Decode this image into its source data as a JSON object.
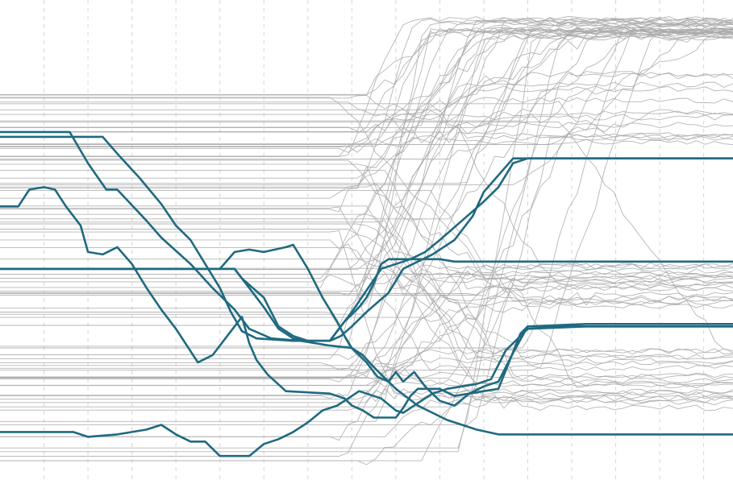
{
  "chart_data": {
    "type": "line",
    "title": "",
    "xlabel": "",
    "ylabel": "",
    "xlim": [
      0,
      100
    ],
    "ylim": [
      0,
      100
    ],
    "grid": {
      "vertical": true,
      "horizontal": false,
      "style": "dashed"
    },
    "grid_x": [
      6,
      12,
      18,
      24,
      30,
      36,
      42,
      48,
      54,
      60,
      66,
      72,
      78,
      84,
      90,
      96
    ],
    "colors": {
      "highlight": "#1f6a80",
      "background": "#a9a9a9",
      "grid": "#d6d6d6"
    },
    "highlighted_series": [
      {
        "values": [
          [
            0,
            72.5
          ],
          [
            9.5,
            72.5
          ],
          [
            12,
            66
          ],
          [
            14.5,
            60.5
          ],
          [
            16,
            60.5
          ],
          [
            20,
            54
          ],
          [
            22,
            50.5
          ],
          [
            26,
            45
          ],
          [
            29,
            40
          ],
          [
            32,
            35.5
          ],
          [
            34,
            31.5
          ],
          [
            37,
            29.5
          ],
          [
            41,
            29
          ],
          [
            45,
            28
          ],
          [
            48,
            27.5
          ],
          [
            49.5,
            26
          ],
          [
            51,
            23.5
          ],
          [
            54,
            19
          ],
          [
            57,
            15.5
          ],
          [
            61,
            12.5
          ],
          [
            65,
            10.5
          ],
          [
            68,
            9.5
          ],
          [
            100,
            9.5
          ]
        ]
      },
      {
        "values": [
          [
            0,
            71.5
          ],
          [
            14,
            71.5
          ],
          [
            16,
            68
          ],
          [
            19,
            63
          ],
          [
            22,
            57.5
          ],
          [
            24,
            53
          ],
          [
            26,
            50
          ],
          [
            28,
            45
          ],
          [
            30,
            40
          ],
          [
            31.5,
            35
          ],
          [
            33,
            31
          ],
          [
            35,
            29.5
          ],
          [
            40,
            29
          ],
          [
            45,
            29
          ],
          [
            46.5,
            30
          ],
          [
            48,
            32
          ],
          [
            50,
            35
          ],
          [
            53,
            39
          ],
          [
            55,
            44
          ],
          [
            59,
            47
          ],
          [
            62,
            50
          ],
          [
            64.5,
            55
          ],
          [
            66,
            60
          ],
          [
            70,
            67
          ],
          [
            100,
            67
          ]
        ]
      },
      {
        "values": [
          [
            0,
            57
          ],
          [
            2.5,
            57
          ],
          [
            4,
            60.5
          ],
          [
            6,
            61
          ],
          [
            7.5,
            60.5
          ],
          [
            9,
            57
          ],
          [
            11,
            53
          ],
          [
            12,
            47.5
          ],
          [
            14,
            47
          ],
          [
            16,
            48.5
          ],
          [
            18,
            45
          ],
          [
            20,
            40
          ],
          [
            22,
            35.5
          ],
          [
            24,
            31.5
          ],
          [
            27,
            24.5
          ],
          [
            29,
            26
          ],
          [
            31,
            30
          ],
          [
            33,
            34
          ],
          [
            34,
            28.5
          ],
          [
            35,
            25
          ],
          [
            36.5,
            22
          ],
          [
            39,
            18.5
          ],
          [
            45,
            18
          ],
          [
            47,
            17
          ],
          [
            48,
            15.5
          ],
          [
            49.5,
            14.5
          ],
          [
            51,
            13
          ],
          [
            54,
            13
          ],
          [
            55,
            15
          ],
          [
            56,
            17.5
          ],
          [
            57,
            19
          ],
          [
            60,
            19
          ],
          [
            62,
            17.5
          ],
          [
            64,
            18
          ],
          [
            66,
            18.5
          ],
          [
            68,
            19
          ],
          [
            71,
            30.5
          ],
          [
            72,
            32
          ],
          [
            100,
            32
          ]
        ]
      },
      {
        "values": [
          [
            0,
            44
          ],
          [
            30,
            44
          ],
          [
            32,
            47.5
          ],
          [
            34,
            48
          ],
          [
            36,
            47.5
          ],
          [
            39,
            48.5
          ],
          [
            40,
            49
          ],
          [
            42,
            44
          ],
          [
            44,
            38
          ],
          [
            46,
            33
          ],
          [
            47,
            30
          ],
          [
            48,
            27.5
          ],
          [
            50,
            24.5
          ],
          [
            51.5,
            21.5
          ],
          [
            53,
            20.5
          ],
          [
            54,
            22.5
          ],
          [
            55,
            20.5
          ],
          [
            56.5,
            22.5
          ],
          [
            58,
            19.5
          ],
          [
            60,
            16.5
          ],
          [
            62,
            15.5
          ],
          [
            64,
            18
          ],
          [
            66,
            19.5
          ],
          [
            68,
            20.5
          ],
          [
            70,
            26.5
          ],
          [
            72,
            32
          ],
          [
            80,
            32.5
          ],
          [
            100,
            32.5
          ]
        ]
      },
      {
        "values": [
          [
            0,
            10
          ],
          [
            10,
            10
          ],
          [
            12,
            9
          ],
          [
            16,
            9.5
          ],
          [
            20,
            10.5
          ],
          [
            22,
            11.5
          ],
          [
            24,
            9.5
          ],
          [
            26,
            8
          ],
          [
            28,
            8
          ],
          [
            30,
            5
          ],
          [
            34,
            5
          ],
          [
            36,
            7.5
          ],
          [
            38,
            8.5
          ],
          [
            40,
            10
          ],
          [
            42,
            12
          ],
          [
            44,
            14.5
          ],
          [
            46,
            15.5
          ],
          [
            48,
            17.5
          ],
          [
            49,
            18.5
          ],
          [
            50,
            18
          ],
          [
            52,
            17
          ],
          [
            54,
            14.5
          ],
          [
            55,
            14
          ],
          [
            57,
            16
          ],
          [
            59,
            18
          ],
          [
            61,
            19
          ],
          [
            63,
            19.5
          ],
          [
            65,
            20
          ],
          [
            67,
            21
          ],
          [
            69,
            27
          ],
          [
            72,
            31.5
          ],
          [
            80,
            32
          ],
          [
            100,
            32
          ]
        ]
      },
      {
        "values": [
          [
            0,
            44
          ],
          [
            32,
            44
          ],
          [
            34,
            40
          ],
          [
            36,
            36
          ],
          [
            38,
            31.5
          ],
          [
            40,
            29.5
          ],
          [
            42,
            29
          ],
          [
            44,
            29
          ],
          [
            45,
            29
          ],
          [
            46,
            31
          ],
          [
            48,
            35
          ],
          [
            50,
            39.5
          ],
          [
            52,
            44
          ],
          [
            54,
            45
          ],
          [
            56,
            46
          ],
          [
            58,
            47.5
          ],
          [
            60,
            50
          ],
          [
            63,
            54
          ],
          [
            66,
            58
          ],
          [
            68,
            61
          ],
          [
            70,
            66
          ],
          [
            72,
            67
          ],
          [
            100,
            67
          ]
        ]
      },
      {
        "values": [
          [
            0,
            44
          ],
          [
            32,
            44
          ],
          [
            33,
            42
          ],
          [
            34.5,
            40
          ],
          [
            36,
            38
          ],
          [
            38,
            32
          ],
          [
            40,
            30
          ],
          [
            42,
            29
          ],
          [
            44,
            29
          ],
          [
            45,
            29
          ],
          [
            45.5,
            30
          ],
          [
            47,
            33
          ],
          [
            49,
            36
          ],
          [
            50,
            38
          ],
          [
            51,
            41
          ],
          [
            52,
            45
          ],
          [
            53,
            46
          ],
          [
            56,
            46
          ],
          [
            58,
            46
          ],
          [
            60,
            46
          ],
          [
            62,
            45.5
          ],
          [
            70,
            45.5
          ],
          [
            80,
            45.5
          ],
          [
            90,
            45.5
          ],
          [
            100,
            45.5
          ]
        ]
      }
    ]
  }
}
